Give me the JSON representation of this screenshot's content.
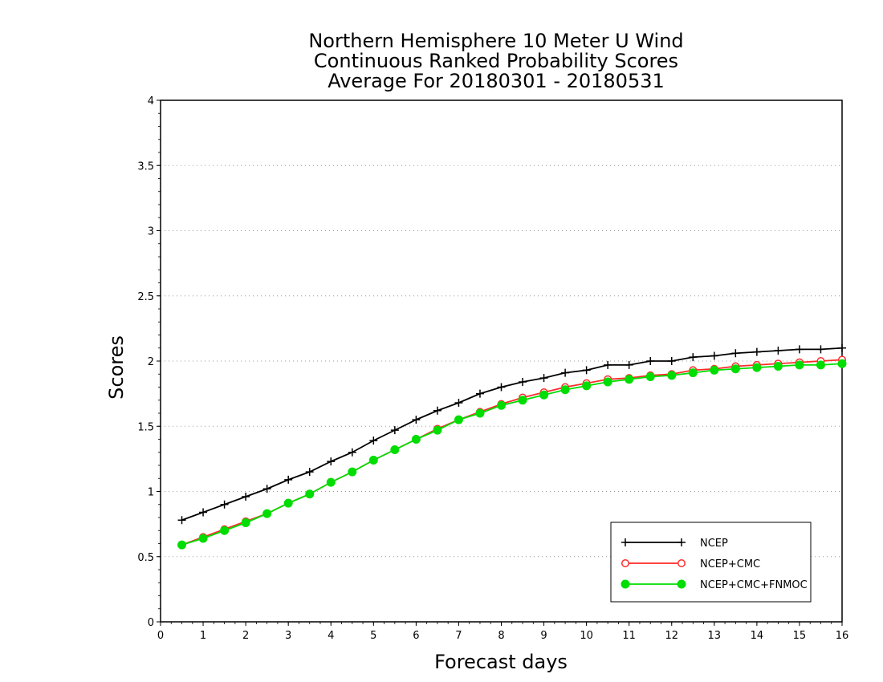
{
  "chart_data": {
    "type": "line",
    "title_lines": [
      "Northern Hemisphere 10 Meter U Wind",
      "Continuous Ranked Probability Scores",
      "Average For 20180301 - 20180531"
    ],
    "xlabel": "Forecast days",
    "ylabel": "Scores",
    "xlim": [
      0,
      16
    ],
    "ylim": [
      0,
      4
    ],
    "xticks": [
      0,
      1,
      2,
      3,
      4,
      5,
      6,
      7,
      8,
      9,
      10,
      11,
      12,
      13,
      14,
      15,
      16
    ],
    "yticks": [
      0,
      0.5,
      1,
      1.5,
      2,
      2.5,
      3,
      3.5,
      4
    ],
    "ytick_labels": [
      "0",
      "0.5",
      "1",
      "1.5",
      "2",
      "2.5",
      "3",
      "3.5",
      "4"
    ],
    "grid": "horizontal dotted",
    "legend_position": "bottom-right",
    "x": [
      0.5,
      1,
      1.5,
      2,
      2.5,
      3,
      3.5,
      4,
      4.5,
      5,
      5.5,
      6,
      6.5,
      7,
      7.5,
      8,
      8.5,
      9,
      9.5,
      10,
      10.5,
      11,
      11.5,
      12,
      12.5,
      13,
      13.5,
      14,
      14.5,
      15,
      15.5,
      16
    ],
    "series": [
      {
        "name": "NCEP",
        "color": "#000000",
        "marker": "plus",
        "values": [
          0.78,
          0.84,
          0.9,
          0.96,
          1.02,
          1.09,
          1.15,
          1.23,
          1.3,
          1.39,
          1.47,
          1.55,
          1.62,
          1.68,
          1.75,
          1.8,
          1.84,
          1.87,
          1.91,
          1.93,
          1.97,
          1.97,
          2.0,
          2.0,
          2.03,
          2.04,
          2.06,
          2.07,
          2.08,
          2.09,
          2.09,
          2.1
        ]
      },
      {
        "name": "NCEP+CMC",
        "color": "#ff2a2a",
        "marker": "open-circle",
        "values": [
          0.59,
          0.65,
          0.71,
          0.77,
          0.83,
          0.91,
          0.98,
          1.07,
          1.15,
          1.24,
          1.32,
          1.4,
          1.48,
          1.55,
          1.61,
          1.67,
          1.72,
          1.76,
          1.8,
          1.83,
          1.86,
          1.87,
          1.89,
          1.9,
          1.93,
          1.94,
          1.96,
          1.97,
          1.98,
          1.99,
          2.0,
          2.01
        ]
      },
      {
        "name": "NCEP+CMC+FNMOC",
        "color": "#00dd00",
        "marker": "filled-circle",
        "values": [
          0.59,
          0.64,
          0.7,
          0.76,
          0.83,
          0.91,
          0.98,
          1.07,
          1.15,
          1.24,
          1.32,
          1.4,
          1.47,
          1.55,
          1.6,
          1.66,
          1.7,
          1.74,
          1.78,
          1.81,
          1.84,
          1.86,
          1.88,
          1.89,
          1.91,
          1.93,
          1.94,
          1.95,
          1.96,
          1.97,
          1.97,
          1.98
        ]
      }
    ]
  }
}
